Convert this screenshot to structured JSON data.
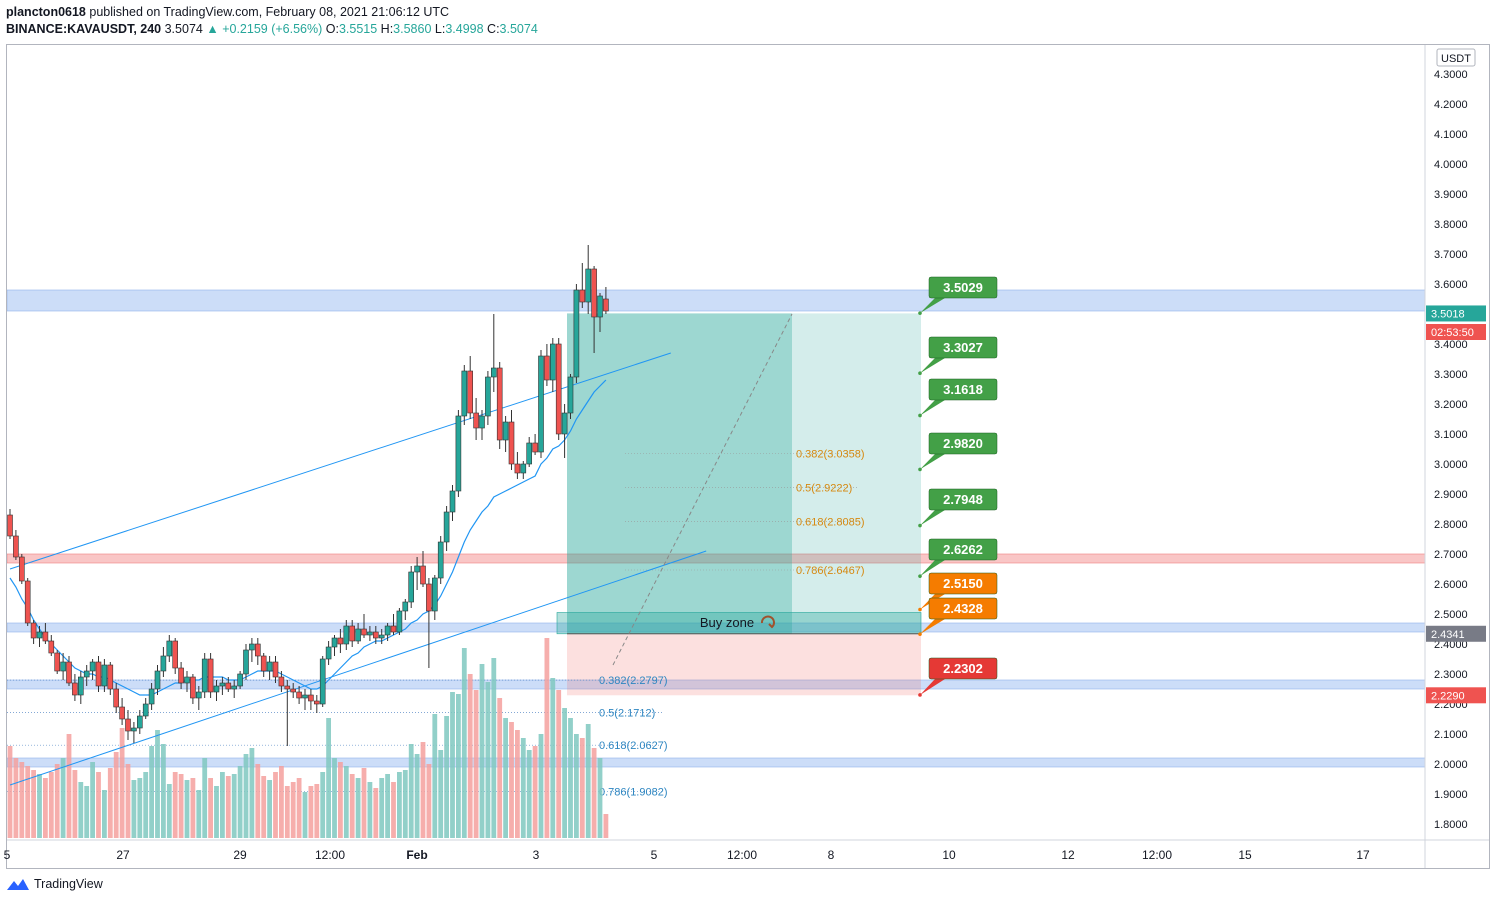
{
  "header": {
    "author": "plancton0618",
    "published": "published on TradingView.com, February 08, 2021 21:06:12 UTC",
    "symbol": "BINANCE:KAVAUSDT, 240",
    "last": "3.5074",
    "change_arrow": "▲",
    "change": "+0.2159 (+6.56%)",
    "o_label": "O:",
    "o": "3.5515",
    "h_label": "H:",
    "h": "3.5860",
    "l_label": "L:",
    "l": "3.4998",
    "c_label": "C:",
    "c": "3.5074"
  },
  "footer": {
    "brand": "TradingView",
    "icon": "tradingview-logo-icon"
  },
  "colors": {
    "up": "#26a69a",
    "down": "#ef5350",
    "ma": "#2196f3",
    "zone_blue": "#bbd2f5",
    "zone_red": "#f7b3b3",
    "target_green": "#43a047",
    "target_orange": "#f57c00",
    "stop_red": "#e53935"
  },
  "chart_data": {
    "type": "candlestick",
    "currency_label": "USDT",
    "ylim": [
      1.73,
      4.38
    ],
    "y_ticks": [
      "4.3000",
      "4.2000",
      "4.1000",
      "4.0000",
      "3.9000",
      "3.8000",
      "3.7000",
      "3.6000",
      "3.5000",
      "3.4000",
      "3.3000",
      "3.2000",
      "3.1000",
      "3.0000",
      "2.9000",
      "2.8000",
      "2.7000",
      "2.6000",
      "2.5000",
      "2.4000",
      "2.3000",
      "2.2000",
      "2.1000",
      "2.0000",
      "1.9000",
      "1.8000"
    ],
    "x_ticks": [
      "5",
      "27",
      "29",
      "12:00",
      "Feb",
      "3",
      "5",
      "12:00",
      "8",
      "10",
      "12",
      "12:00",
      "15",
      "17"
    ],
    "price_badges": [
      {
        "text": "3.5018",
        "value": 3.5018,
        "color": "#26a69a"
      },
      {
        "text": "02:53:50",
        "value": 3.44,
        "color": "#ef5350"
      },
      {
        "text": "2.4341",
        "value": 2.4341,
        "color": "#787b86"
      },
      {
        "text": "2.2290",
        "value": 2.229,
        "color": "#ef5350"
      }
    ],
    "zones": [
      {
        "color": "blue",
        "from": 3.51,
        "to": 3.58
      },
      {
        "color": "red",
        "from": 2.67,
        "to": 2.7
      },
      {
        "color": "blue",
        "from": 2.44,
        "to": 2.47
      },
      {
        "color": "blue",
        "from": 2.25,
        "to": 2.28
      },
      {
        "color": "blue",
        "from": 1.99,
        "to": 2.02
      }
    ],
    "position": {
      "entry_low": 2.434,
      "entry_high": 2.505,
      "target": 3.502,
      "stop": 2.229,
      "label": "Buy zone",
      "icon": "buy-zone-swirl-icon"
    },
    "targets": [
      {
        "label": "3.5029",
        "value": 3.5029,
        "kind": "green"
      },
      {
        "label": "3.3027",
        "value": 3.3027,
        "kind": "green"
      },
      {
        "label": "3.1618",
        "value": 3.1618,
        "kind": "green"
      },
      {
        "label": "2.9820",
        "value": 2.982,
        "kind": "green"
      },
      {
        "label": "2.7948",
        "value": 2.7948,
        "kind": "green"
      },
      {
        "label": "2.6262",
        "value": 2.6262,
        "kind": "green"
      },
      {
        "label": "2.5150",
        "value": 2.515,
        "kind": "orange"
      },
      {
        "label": "2.4328",
        "value": 2.4328,
        "kind": "orange"
      },
      {
        "label": "2.2302",
        "value": 2.2302,
        "kind": "red"
      }
    ],
    "fib_upper": [
      {
        "label": "0.382(3.0358)",
        "value": 3.0358
      },
      {
        "label": "0.5(2.9222)",
        "value": 2.9222
      },
      {
        "label": "0.618(2.8085)",
        "value": 2.8085
      },
      {
        "label": "0.786(2.6467)",
        "value": 2.6467
      }
    ],
    "fib_lower": [
      {
        "label": "0.382(2.2797)",
        "value": 2.2797
      },
      {
        "label": "0.5(2.1712)",
        "value": 2.1712
      },
      {
        "label": "0.618(2.0627)",
        "value": 2.0627
      },
      {
        "label": "0.786(1.9082)",
        "value": 1.9082
      }
    ],
    "trendlines": [
      {
        "from": [
          0,
          2.65
        ],
        "to": [
          112,
          3.37
        ]
      },
      {
        "from": [
          0,
          1.93
        ],
        "to": [
          118,
          2.71
        ]
      }
    ],
    "candles": [
      [
        2.83,
        2.85,
        2.75,
        2.76
      ],
      [
        2.76,
        2.78,
        2.68,
        2.69
      ],
      [
        2.69,
        2.7,
        2.6,
        2.61
      ],
      [
        2.61,
        2.62,
        2.46,
        2.47
      ],
      [
        2.47,
        2.48,
        2.4,
        2.42
      ],
      [
        2.42,
        2.46,
        2.39,
        2.44
      ],
      [
        2.44,
        2.47,
        2.4,
        2.41
      ],
      [
        2.41,
        2.43,
        2.36,
        2.37
      ],
      [
        2.37,
        2.38,
        2.3,
        2.31
      ],
      [
        2.31,
        2.37,
        2.28,
        2.34
      ],
      [
        2.34,
        2.36,
        2.26,
        2.27
      ],
      [
        2.27,
        2.3,
        2.21,
        2.23
      ],
      [
        2.23,
        2.31,
        2.2,
        2.29
      ],
      [
        2.29,
        2.33,
        2.26,
        2.31
      ],
      [
        2.31,
        2.35,
        2.28,
        2.34
      ],
      [
        2.34,
        2.36,
        2.24,
        2.26
      ],
      [
        2.26,
        2.35,
        2.24,
        2.33
      ],
      [
        2.33,
        2.34,
        2.23,
        2.25
      ],
      [
        2.25,
        2.27,
        2.17,
        2.19
      ],
      [
        2.19,
        2.22,
        2.13,
        2.15
      ],
      [
        2.15,
        2.18,
        2.08,
        2.11
      ],
      [
        2.11,
        2.14,
        2.07,
        2.12
      ],
      [
        2.12,
        2.18,
        2.1,
        2.16
      ],
      [
        2.16,
        2.22,
        2.15,
        2.2
      ],
      [
        2.2,
        2.27,
        2.18,
        2.25
      ],
      [
        2.25,
        2.33,
        2.23,
        2.31
      ],
      [
        2.31,
        2.39,
        2.29,
        2.36
      ],
      [
        2.36,
        2.43,
        2.34,
        2.41
      ],
      [
        2.41,
        2.42,
        2.3,
        2.32
      ],
      [
        2.32,
        2.34,
        2.25,
        2.27
      ],
      [
        2.27,
        2.31,
        2.24,
        2.29
      ],
      [
        2.29,
        2.3,
        2.2,
        2.22
      ],
      [
        2.22,
        2.26,
        2.18,
        2.24
      ],
      [
        2.24,
        2.37,
        2.22,
        2.35
      ],
      [
        2.35,
        2.37,
        2.22,
        2.24
      ],
      [
        2.24,
        2.28,
        2.21,
        2.26
      ],
      [
        2.26,
        2.29,
        2.23,
        2.27
      ],
      [
        2.27,
        2.29,
        2.24,
        2.25
      ],
      [
        2.25,
        2.28,
        2.22,
        2.26
      ],
      [
        2.26,
        2.31,
        2.25,
        2.3
      ],
      [
        2.3,
        2.4,
        2.28,
        2.38
      ],
      [
        2.38,
        2.42,
        2.34,
        2.4
      ],
      [
        2.4,
        2.42,
        2.33,
        2.36
      ],
      [
        2.36,
        2.37,
        2.29,
        2.31
      ],
      [
        2.31,
        2.36,
        2.28,
        2.34
      ],
      [
        2.34,
        2.36,
        2.27,
        2.29
      ],
      [
        2.29,
        2.31,
        2.24,
        2.26
      ],
      [
        2.26,
        2.28,
        2.06,
        2.25
      ],
      [
        2.25,
        2.27,
        2.22,
        2.24
      ],
      [
        2.24,
        2.26,
        2.2,
        2.22
      ],
      [
        2.22,
        2.25,
        2.18,
        2.23
      ],
      [
        2.23,
        2.25,
        2.18,
        2.21
      ],
      [
        2.21,
        2.23,
        2.17,
        2.2
      ],
      [
        2.2,
        2.36,
        2.19,
        2.35
      ],
      [
        2.35,
        2.41,
        2.33,
        2.39
      ],
      [
        2.39,
        2.43,
        2.36,
        2.42
      ],
      [
        2.42,
        2.45,
        2.37,
        2.4
      ],
      [
        2.4,
        2.48,
        2.38,
        2.46
      ],
      [
        2.46,
        2.48,
        2.39,
        2.41
      ],
      [
        2.41,
        2.47,
        2.4,
        2.45
      ],
      [
        2.45,
        2.5,
        2.42,
        2.43
      ],
      [
        2.43,
        2.46,
        2.41,
        2.44
      ],
      [
        2.44,
        2.46,
        2.4,
        2.42
      ],
      [
        2.42,
        2.45,
        2.4,
        2.43
      ],
      [
        2.43,
        2.47,
        2.41,
        2.46
      ],
      [
        2.46,
        2.5,
        2.43,
        2.44
      ],
      [
        2.44,
        2.52,
        2.43,
        2.51
      ],
      [
        2.51,
        2.55,
        2.48,
        2.54
      ],
      [
        2.54,
        2.66,
        2.52,
        2.64
      ],
      [
        2.64,
        2.69,
        2.58,
        2.66
      ],
      [
        2.66,
        2.71,
        2.59,
        2.6
      ],
      [
        2.6,
        2.62,
        2.32,
        2.51
      ],
      [
        2.51,
        2.63,
        2.48,
        2.62
      ],
      [
        2.62,
        2.76,
        2.6,
        2.74
      ],
      [
        2.74,
        2.86,
        2.71,
        2.84
      ],
      [
        2.84,
        2.93,
        2.81,
        2.91
      ],
      [
        2.91,
        3.18,
        2.89,
        3.16
      ],
      [
        3.16,
        3.33,
        3.13,
        3.31
      ],
      [
        3.31,
        3.36,
        3.15,
        3.17
      ],
      [
        3.17,
        3.22,
        3.08,
        3.12
      ],
      [
        3.12,
        3.18,
        3.08,
        3.16
      ],
      [
        3.16,
        3.31,
        3.13,
        3.29
      ],
      [
        3.29,
        3.5,
        3.24,
        3.32
      ],
      [
        3.32,
        3.34,
        3.05,
        3.08
      ],
      [
        3.08,
        3.16,
        3.04,
        3.14
      ],
      [
        3.14,
        3.18,
        2.98,
        3.0
      ],
      [
        3.0,
        3.04,
        2.95,
        2.97
      ],
      [
        2.97,
        3.01,
        2.95,
        3.0
      ],
      [
        3.0,
        3.09,
        2.99,
        3.07
      ],
      [
        3.07,
        3.1,
        3.03,
        3.04
      ],
      [
        3.04,
        3.38,
        3.02,
        3.36
      ],
      [
        3.36,
        3.4,
        3.26,
        3.28
      ],
      [
        3.28,
        3.42,
        3.24,
        3.4
      ],
      [
        3.4,
        3.42,
        3.08,
        3.1
      ],
      [
        3.1,
        3.2,
        3.02,
        3.17
      ],
      [
        3.17,
        3.3,
        3.15,
        3.29
      ],
      [
        3.29,
        3.6,
        3.27,
        3.58
      ],
      [
        3.58,
        3.67,
        3.52,
        3.54
      ],
      [
        3.54,
        3.73,
        3.5,
        3.65
      ],
      [
        3.65,
        3.66,
        3.37,
        3.49
      ],
      [
        3.49,
        3.57,
        3.44,
        3.56
      ],
      [
        3.55,
        3.59,
        3.5,
        3.51
      ]
    ],
    "volume": [
      0.46,
      0.4,
      0.38,
      0.36,
      0.34,
      0.32,
      0.3,
      0.33,
      0.37,
      0.4,
      0.52,
      0.34,
      0.28,
      0.26,
      0.38,
      0.33,
      0.24,
      0.35,
      0.43,
      0.55,
      0.37,
      0.29,
      0.3,
      0.33,
      0.46,
      0.54,
      0.47,
      0.27,
      0.33,
      0.32,
      0.29,
      0.3,
      0.24,
      0.4,
      0.3,
      0.26,
      0.33,
      0.31,
      0.32,
      0.36,
      0.42,
      0.45,
      0.37,
      0.31,
      0.29,
      0.33,
      0.36,
      0.26,
      0.28,
      0.3,
      0.23,
      0.26,
      0.27,
      0.33,
      0.6,
      0.4,
      0.38,
      0.36,
      0.32,
      0.3,
      0.35,
      0.28,
      0.25,
      0.3,
      0.32,
      0.28,
      0.33,
      0.34,
      0.47,
      0.42,
      0.48,
      0.37,
      0.62,
      0.44,
      0.61,
      0.73,
      0.72,
      0.95,
      0.82,
      0.74,
      0.87,
      0.78,
      0.9,
      0.7,
      0.6,
      0.58,
      0.54,
      0.5,
      0.44,
      0.46,
      0.52,
      1.0,
      0.8,
      0.74,
      0.65,
      0.6,
      0.52,
      0.5,
      0.57,
      0.45,
      0.4,
      0.12
    ],
    "ma": [
      2.62,
      2.59,
      2.55,
      2.52,
      2.48,
      2.45,
      2.42,
      2.4,
      2.38,
      2.36,
      2.34,
      2.32,
      2.31,
      2.3,
      2.3,
      2.29,
      2.29,
      2.28,
      2.27,
      2.26,
      2.25,
      2.24,
      2.23,
      2.23,
      2.23,
      2.24,
      2.25,
      2.26,
      2.27,
      2.27,
      2.28,
      2.28,
      2.28,
      2.29,
      2.29,
      2.29,
      2.29,
      2.28,
      2.28,
      2.28,
      2.29,
      2.3,
      2.31,
      2.31,
      2.31,
      2.31,
      2.3,
      2.29,
      2.28,
      2.27,
      2.26,
      2.25,
      2.25,
      2.26,
      2.28,
      2.3,
      2.32,
      2.34,
      2.36,
      2.37,
      2.39,
      2.4,
      2.41,
      2.41,
      2.42,
      2.43,
      2.44,
      2.45,
      2.47,
      2.48,
      2.5,
      2.51,
      2.53,
      2.56,
      2.6,
      2.64,
      2.69,
      2.74,
      2.78,
      2.81,
      2.84,
      2.86,
      2.89,
      2.9,
      2.91,
      2.92,
      2.93,
      2.94,
      2.95,
      2.96,
      3.0,
      3.02,
      3.05,
      3.06,
      3.08,
      3.11,
      3.15,
      3.18,
      3.21,
      3.24,
      3.26,
      3.28
    ]
  }
}
